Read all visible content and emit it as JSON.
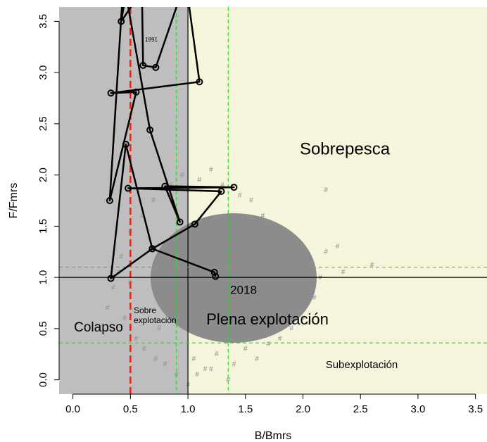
{
  "chart_data": {
    "type": "line",
    "xlabel": "B/Bmrs",
    "ylabel": "F/Fmrs",
    "xlim": [
      -0.12,
      3.6
    ],
    "ylim": [
      -0.14,
      3.64
    ],
    "xticks": [
      {
        "value": 0,
        "label": "0.0"
      },
      {
        "value": 0.5,
        "label": "0.5"
      },
      {
        "value": 1,
        "label": "1.0"
      },
      {
        "value": 1.5,
        "label": "1.5"
      },
      {
        "value": 2,
        "label": "2.0"
      },
      {
        "value": 2.5,
        "label": "2.5"
      },
      {
        "value": 3,
        "label": "3.0"
      },
      {
        "value": 3.5,
        "label": "3.5"
      }
    ],
    "yticks": [
      {
        "value": 0,
        "label": "0.0"
      },
      {
        "value": 0.5,
        "label": "0.5"
      },
      {
        "value": 1,
        "label": "1.0"
      },
      {
        "value": 1.5,
        "label": "1.5"
      },
      {
        "value": 2,
        "label": "2.0"
      },
      {
        "value": 2.5,
        "label": "2.5"
      },
      {
        "value": 3,
        "label": "3.0"
      },
      {
        "value": 3.5,
        "label": "3.5"
      }
    ],
    "regions": [
      {
        "x": [
          -0.12,
          1
        ],
        "color": "#bebebe"
      },
      {
        "x": [
          1,
          3.6
        ],
        "color": "#f5f5dc"
      }
    ],
    "vlines": [
      {
        "value": 1,
        "color": "#000000",
        "dashed": false
      },
      {
        "value": 0.9,
        "color": "#22dd22",
        "dashed": true
      },
      {
        "value": 1.35,
        "color": "#22dd22",
        "dashed": true
      },
      {
        "value": 0.5,
        "color": "#e8221b",
        "dashed": true
      }
    ],
    "hlines": [
      {
        "value": 1,
        "color": "#000000",
        "dashed": false
      },
      {
        "value": 1.1,
        "color": "#22dd22",
        "dashed": true
      },
      {
        "value": 0.36,
        "color": "#22dd22",
        "dashed": true
      }
    ],
    "cloud": {
      "marker": "#",
      "color": "#8c8c8c",
      "x": [
        0.3,
        0.35,
        0.42,
        0.45,
        0.5,
        0.55,
        0.6,
        0.62,
        0.7,
        0.72,
        0.8,
        0.85,
        0.9,
        0.95,
        1.0,
        1.05,
        1.1,
        1.15,
        1.2,
        1.25,
        1.3,
        1.35,
        1.4,
        1.45,
        1.5,
        1.55,
        1.6,
        1.65,
        1.7,
        1.75,
        1.8,
        1.85,
        1.9,
        1.95,
        2.0,
        2.05,
        2.1,
        2.15,
        2.2,
        2.3,
        2.35,
        2.6,
        2.2,
        1.08,
        1.2,
        0.5,
        0.4,
        2.05,
        1.0,
        0.75
      ],
      "y": [
        0.7,
        0.9,
        1.2,
        0.6,
        1.45,
        0.4,
        1.6,
        0.3,
        1.75,
        0.2,
        0.15,
        1.9,
        0.05,
        2.0,
        -0.05,
        0.2,
        1.95,
        0.1,
        2.05,
        0.25,
        1.9,
        0.0,
        0.15,
        1.8,
        0.3,
        1.75,
        0.2,
        1.6,
        0.35,
        1.5,
        0.4,
        1.4,
        0.5,
        1.3,
        0.6,
        1.2,
        0.8,
        1.0,
        1.25,
        1.3,
        1.05,
        1.12,
        1.85,
        0.05,
        0.1,
        0.95,
        1.05,
        0.55,
        1.85,
        0.5
      ]
    },
    "series": [
      {
        "color": "#000000",
        "x": [
          0.48,
          0.42,
          0.6,
          0.61,
          0.72,
          0.98,
          1.1,
          0.33,
          0.55,
          0.32,
          0.44,
          0.67,
          0.93,
          0.8,
          1.4,
          0.48,
          1.29,
          1.06,
          0.69,
          0.33,
          0.46,
          0.69,
          1.23,
          1.24
        ],
        "y": [
          3.9,
          3.5,
          3.8,
          3.07,
          3.05,
          3.9,
          2.91,
          2.8,
          2.81,
          1.75,
          3.9,
          2.44,
          1.54,
          1.89,
          1.88,
          1.87,
          1.84,
          1.52,
          1.28,
          0.99,
          2.3,
          1.28,
          1.05,
          1.01
        ]
      }
    ],
    "annotations": [
      {
        "text": "Sobrepesca",
        "size": 24
      },
      {
        "text": "Plena explotación",
        "size": 22
      },
      {
        "text": "Colapso",
        "size": 19
      },
      {
        "text": "Sobre",
        "size": 12
      },
      {
        "text": "explotación",
        "size": 12
      },
      {
        "text": "Subexplotación",
        "size": 15
      },
      {
        "text": "2018",
        "size": 17
      },
      {
        "text": "1991",
        "size": 8
      }
    ]
  }
}
